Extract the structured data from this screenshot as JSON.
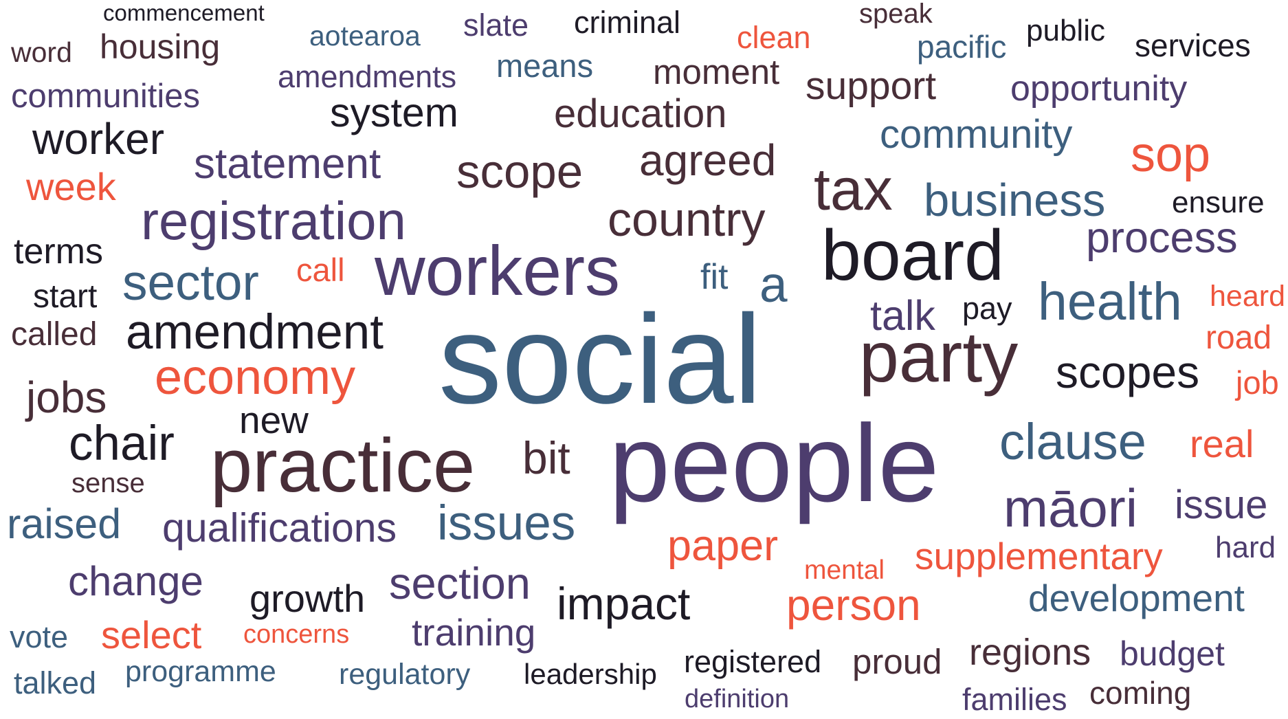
{
  "palette": {
    "blue": "#3d5f7e",
    "purple": "#4d3d6e",
    "brown": "#482e38",
    "black": "#1e1b26",
    "red": "#ee553d"
  },
  "words": [
    {
      "text": "commencement",
      "color": "black"
    },
    {
      "text": "word",
      "color": "brown"
    },
    {
      "text": "housing",
      "color": "brown"
    },
    {
      "text": "aotearoa",
      "color": "blue"
    },
    {
      "text": "slate",
      "color": "purple"
    },
    {
      "text": "criminal",
      "color": "black"
    },
    {
      "text": "speak",
      "color": "brown"
    },
    {
      "text": "clean",
      "color": "red"
    },
    {
      "text": "pacific",
      "color": "blue"
    },
    {
      "text": "public",
      "color": "black"
    },
    {
      "text": "services",
      "color": "black"
    },
    {
      "text": "amendments",
      "color": "purple"
    },
    {
      "text": "means",
      "color": "blue"
    },
    {
      "text": "moment",
      "color": "brown"
    },
    {
      "text": "support",
      "color": "brown"
    },
    {
      "text": "opportunity",
      "color": "purple"
    },
    {
      "text": "communities",
      "color": "purple"
    },
    {
      "text": "system",
      "color": "black"
    },
    {
      "text": "education",
      "color": "brown"
    },
    {
      "text": "community",
      "color": "blue"
    },
    {
      "text": "worker",
      "color": "black"
    },
    {
      "text": "statement",
      "color": "purple"
    },
    {
      "text": "scope",
      "color": "brown"
    },
    {
      "text": "agreed",
      "color": "brown"
    },
    {
      "text": "sop",
      "color": "red"
    },
    {
      "text": "week",
      "color": "red"
    },
    {
      "text": "tax",
      "color": "brown"
    },
    {
      "text": "business",
      "color": "blue"
    },
    {
      "text": "ensure",
      "color": "black"
    },
    {
      "text": "registration",
      "color": "purple"
    },
    {
      "text": "country",
      "color": "brown"
    },
    {
      "text": "board",
      "color": "black"
    },
    {
      "text": "process",
      "color": "purple"
    },
    {
      "text": "terms",
      "color": "black"
    },
    {
      "text": "workers",
      "color": "purple"
    },
    {
      "text": "sector",
      "color": "blue"
    },
    {
      "text": "call",
      "color": "red"
    },
    {
      "text": "fit",
      "color": "blue"
    },
    {
      "text": "a",
      "color": "blue"
    },
    {
      "text": "start",
      "color": "black"
    },
    {
      "text": "health",
      "color": "blue"
    },
    {
      "text": "heard",
      "color": "red"
    },
    {
      "text": "talk",
      "color": "purple"
    },
    {
      "text": "pay",
      "color": "black"
    },
    {
      "text": "called",
      "color": "brown"
    },
    {
      "text": "amendment",
      "color": "black"
    },
    {
      "text": "social",
      "color": "blue"
    },
    {
      "text": "road",
      "color": "red"
    },
    {
      "text": "party",
      "color": "brown"
    },
    {
      "text": "scopes",
      "color": "black"
    },
    {
      "text": "jobs",
      "color": "brown"
    },
    {
      "text": "economy",
      "color": "red"
    },
    {
      "text": "job",
      "color": "red"
    },
    {
      "text": "new",
      "color": "black"
    },
    {
      "text": "chair",
      "color": "black"
    },
    {
      "text": "clause",
      "color": "blue"
    },
    {
      "text": "real",
      "color": "red"
    },
    {
      "text": "practice",
      "color": "brown"
    },
    {
      "text": "bit",
      "color": "brown"
    },
    {
      "text": "people",
      "color": "purple"
    },
    {
      "text": "sense",
      "color": "brown"
    },
    {
      "text": "māori",
      "color": "purple"
    },
    {
      "text": "issue",
      "color": "purple"
    },
    {
      "text": "raised",
      "color": "blue"
    },
    {
      "text": "qualifications",
      "color": "purple"
    },
    {
      "text": "issues",
      "color": "blue"
    },
    {
      "text": "paper",
      "color": "red"
    },
    {
      "text": "hard",
      "color": "purple"
    },
    {
      "text": "mental",
      "color": "red"
    },
    {
      "text": "supplementary",
      "color": "red"
    },
    {
      "text": "change",
      "color": "purple"
    },
    {
      "text": "section",
      "color": "purple"
    },
    {
      "text": "growth",
      "color": "black"
    },
    {
      "text": "impact",
      "color": "black"
    },
    {
      "text": "development",
      "color": "blue"
    },
    {
      "text": "person",
      "color": "red"
    },
    {
      "text": "vote",
      "color": "blue"
    },
    {
      "text": "select",
      "color": "red"
    },
    {
      "text": "concerns",
      "color": "red"
    },
    {
      "text": "training",
      "color": "purple"
    },
    {
      "text": "regions",
      "color": "brown"
    },
    {
      "text": "budget",
      "color": "purple"
    },
    {
      "text": "talked",
      "color": "blue"
    },
    {
      "text": "programme",
      "color": "blue"
    },
    {
      "text": "regulatory",
      "color": "blue"
    },
    {
      "text": "leadership",
      "color": "black"
    },
    {
      "text": "registered",
      "color": "black"
    },
    {
      "text": "proud",
      "color": "brown"
    },
    {
      "text": "definition",
      "color": "purple"
    },
    {
      "text": "families",
      "color": "purple"
    },
    {
      "text": "coming",
      "color": "brown"
    }
  ]
}
